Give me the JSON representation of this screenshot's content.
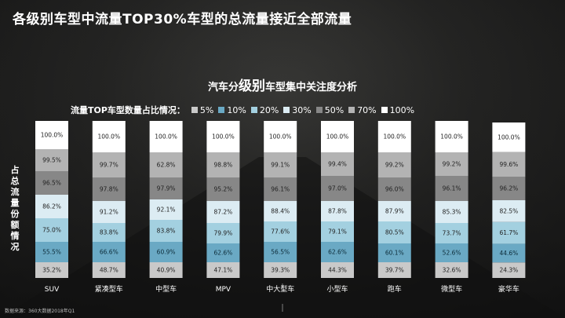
{
  "page": {
    "title": "各级别车型中流量TOP30%车型的总流量接近全部流量",
    "source": "数据来源：360大数据2018年Q1"
  },
  "colors": {
    "bg": "#1c1c1c",
    "segments": [
      "#c9c9c9",
      "#6aa9c4",
      "#a3d0e0",
      "#dcecf3",
      "#878787",
      "#b3b3b3",
      "#ffffff"
    ]
  },
  "chart_data": {
    "type": "bar",
    "stacked": true,
    "title_parts": [
      "汽车分",
      "级别",
      "车型集中关注度分析"
    ],
    "legend_title": "流量TOP车型数量占比情况：",
    "legend": [
      "5%",
      "10%",
      "20%",
      "30%",
      "50%",
      "70%",
      "100%"
    ],
    "ylabel": "占总流量份额情况",
    "categories": [
      "SUV",
      "紧凑型车",
      "中型车",
      "MPV",
      "中大型车",
      "小型车",
      "跑车",
      "微型车",
      "豪华车"
    ],
    "series": [
      {
        "name": "5%",
        "values": [
          35.2,
          48.7,
          40.9,
          47.1,
          39.3,
          44.3,
          39.7,
          32.6,
          24.3
        ]
      },
      {
        "name": "10%",
        "values": [
          55.5,
          66.6,
          60.9,
          62.6,
          56.5,
          62.6,
          60.1,
          52.6,
          44.6
        ]
      },
      {
        "name": "20%",
        "values": [
          75.0,
          83.8,
          83.8,
          79.9,
          77.6,
          79.1,
          80.5,
          73.7,
          61.7
        ]
      },
      {
        "name": "30%",
        "values": [
          86.2,
          91.2,
          92.1,
          87.2,
          88.4,
          87.8,
          87.9,
          85.3,
          82.5
        ]
      },
      {
        "name": "50%",
        "values": [
          96.5,
          97.8,
          97.9,
          95.2,
          96.1,
          97.0,
          96.0,
          96.1,
          96.2
        ]
      },
      {
        "name": "70%",
        "values": [
          99.5,
          99.7,
          62.8,
          98.8,
          99.1,
          99.4,
          99.2,
          99.2,
          99.6
        ]
      },
      {
        "name": "100%",
        "values": [
          100.0,
          100.0,
          100.0,
          100.0,
          100.0,
          100.0,
          100.0,
          100.0,
          100.0
        ]
      }
    ],
    "value_labels": [
      [
        "35.2%",
        "55.5%",
        "75.0%",
        "86.2%",
        "96.5%",
        "99.5%",
        "100.0%"
      ],
      [
        "48.7%",
        "66.6%",
        "83.8%",
        "91.2%",
        "97.8%",
        "99.7%",
        "100.0%"
      ],
      [
        "40.9%",
        "60.9%",
        "83.8%",
        "92.1%",
        "97.9%",
        "62.8%",
        "100.0%"
      ],
      [
        "47.1%",
        "62.6%",
        "79.9%",
        "87.2%",
        "95.2%",
        "98.8%",
        "100.0%"
      ],
      [
        "39.3%",
        "56.5%",
        "77.6%",
        "88.4%",
        "96.1%",
        "99.1%",
        "100.0%"
      ],
      [
        "44.3%",
        "62.6%",
        "79.1%",
        "87.8%",
        "97.0%",
        "99.4%",
        "100.0%"
      ],
      [
        "39.7%",
        "60.1%",
        "80.5%",
        "87.9%",
        "96.0%",
        "99.2%",
        "100.0%"
      ],
      [
        "32.6%",
        "52.6%",
        "73.7%",
        "85.3%",
        "96.1%",
        "99.2%",
        "100.0%"
      ],
      [
        "24.3%",
        "44.6%",
        "61.7%",
        "82.5%",
        "96.2%",
        "99.6%",
        "100.0%"
      ]
    ],
    "segment_proportions": [
      [
        0.1,
        0.13,
        0.15,
        0.15,
        0.15,
        0.14,
        0.18
      ],
      [
        0.1,
        0.13,
        0.12,
        0.14,
        0.15,
        0.16,
        0.2
      ],
      [
        0.1,
        0.13,
        0.14,
        0.13,
        0.14,
        0.16,
        0.2
      ],
      [
        0.1,
        0.12,
        0.13,
        0.14,
        0.15,
        0.16,
        0.2
      ],
      [
        0.1,
        0.13,
        0.13,
        0.13,
        0.15,
        0.16,
        0.2
      ],
      [
        0.1,
        0.13,
        0.13,
        0.13,
        0.16,
        0.15,
        0.2
      ],
      [
        0.1,
        0.12,
        0.14,
        0.13,
        0.15,
        0.16,
        0.2
      ],
      [
        0.1,
        0.12,
        0.13,
        0.14,
        0.16,
        0.15,
        0.2
      ],
      [
        0.1,
        0.12,
        0.14,
        0.14,
        0.15,
        0.16,
        0.19
      ]
    ]
  }
}
